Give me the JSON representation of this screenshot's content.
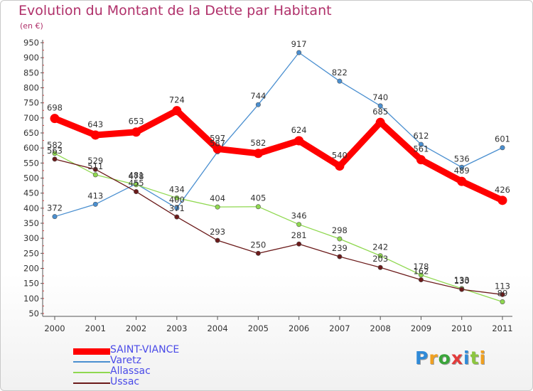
{
  "title": "Evolution du Montant de la Dette par Habitant",
  "subtitle": "(en €)",
  "logo": {
    "text": "Proxiti",
    "letters": [
      {
        "ch": "P",
        "color": "#2f8ad8"
      },
      {
        "ch": "r",
        "color": "#f0a020"
      },
      {
        "ch": "o",
        "color": "#3aa53a"
      },
      {
        "ch": "x",
        "color": "#e23b3b"
      },
      {
        "ch": "i",
        "color": "#2f8ad8"
      },
      {
        "ch": "t",
        "color": "#8cc63f"
      },
      {
        "ch": "i",
        "color": "#f0a020"
      }
    ]
  },
  "chart_data": {
    "type": "line",
    "x": [
      2000,
      2001,
      2002,
      2003,
      2004,
      2005,
      2006,
      2007,
      2008,
      2009,
      2010,
      2011
    ],
    "ylim": [
      50,
      950
    ],
    "yticks": [
      50,
      100,
      150,
      200,
      250,
      300,
      350,
      400,
      450,
      500,
      550,
      600,
      650,
      700,
      750,
      800,
      850,
      900,
      950
    ],
    "grid": false,
    "legend_position": "bottom-left",
    "series": [
      {
        "name": "SAINT-VIANCE",
        "color": "#ff0000",
        "values": [
          698,
          643,
          653,
          724,
          597,
          582,
          624,
          540,
          685,
          561,
          489,
          426
        ]
      },
      {
        "name": "Varetz",
        "color": "#4a8fd0",
        "values": [
          372,
          413,
          481,
          400,
          587,
          744,
          917,
          822,
          740,
          612,
          536,
          601
        ]
      },
      {
        "name": "Allassac",
        "color": "#8fd84f",
        "values": [
          582,
          511,
          478,
          434,
          404,
          405,
          346,
          298,
          242,
          178,
          133,
          89
        ]
      },
      {
        "name": "Ussac",
        "color": "#6b1a1a",
        "values": [
          563,
          529,
          455,
          371,
          293,
          250,
          281,
          239,
          203,
          162,
          130,
          113
        ]
      }
    ]
  }
}
